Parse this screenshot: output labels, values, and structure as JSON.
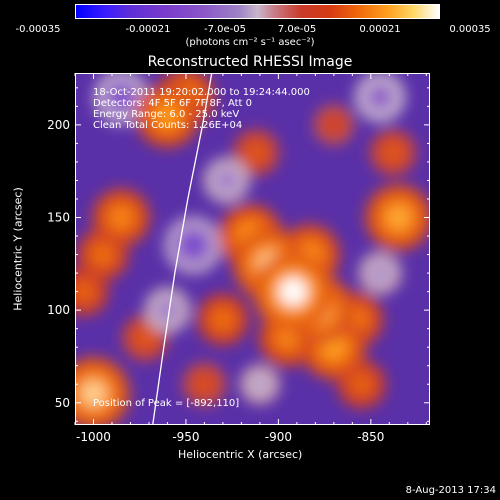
{
  "colorbar": {
    "ticks": [
      "-0.00035",
      "-0.00021",
      "-7.0e-05",
      "7.0e-05",
      "0.00021",
      "0.00035"
    ],
    "units": "(photons cm⁻² s⁻¹ asec⁻²)",
    "colors": [
      "#0000ff",
      "#5e2fd6",
      "#8a56c8",
      "#c8b6cc",
      "#c83a2a",
      "#f06a0a",
      "#ffa020",
      "#ffffff"
    ]
  },
  "chart_data": {
    "type": "heatmap",
    "title": "Reconstructed RHESSI Image",
    "xlabel": "Heliocentric X (arcsec)",
    "ylabel": "Heliocentric Y (arcsec)",
    "xlim": [
      -1010,
      -818
    ],
    "ylim": [
      38,
      228
    ],
    "xticks": [
      -1000,
      -950,
      -900,
      -850
    ],
    "yticks": [
      50,
      100,
      150,
      200
    ],
    "value_range": [
      -0.00035,
      0.00035
    ],
    "annotations": [
      "18-Oct-2011 19:20:02.000 to 19:24:44.000",
      "Detectors: 4F 5F 6F 7F 8F, Att 0",
      "Energy Range: 6.0 - 25.0 keV",
      "Clean    Total Counts: 1.26E+04"
    ],
    "peak_label": "Position of Peak = [-892,110]",
    "peak": [
      -892,
      110
    ],
    "limb_curve": [
      [
        -968,
        38
      ],
      [
        -962,
        80
      ],
      [
        -956,
        120
      ],
      [
        -949,
        160
      ],
      [
        -941,
        200
      ],
      [
        -936,
        228
      ]
    ],
    "blobs": [
      {
        "x": -892,
        "y": 110,
        "v": 0.00035
      },
      {
        "x": -905,
        "y": 125,
        "v": 0.0003
      },
      {
        "x": -878,
        "y": 100,
        "v": 0.00028
      },
      {
        "x": -915,
        "y": 140,
        "v": 0.00024
      },
      {
        "x": -870,
        "y": 80,
        "v": 0.00025
      },
      {
        "x": -883,
        "y": 130,
        "v": 0.00022
      },
      {
        "x": -858,
        "y": 95,
        "v": 0.00018
      },
      {
        "x": -895,
        "y": 85,
        "v": 0.0002
      },
      {
        "x": -835,
        "y": 150,
        "v": 0.00026
      },
      {
        "x": -838,
        "y": 185,
        "v": 0.00012
      },
      {
        "x": -960,
        "y": 205,
        "v": 0.00024
      },
      {
        "x": -950,
        "y": 215,
        "v": 0.0002
      },
      {
        "x": -985,
        "y": 150,
        "v": 0.0002
      },
      {
        "x": -995,
        "y": 130,
        "v": 0.00016
      },
      {
        "x": -1000,
        "y": 55,
        "v": 0.0003
      },
      {
        "x": -972,
        "y": 85,
        "v": 0.00012
      },
      {
        "x": -1005,
        "y": 110,
        "v": 0.00014
      },
      {
        "x": -930,
        "y": 95,
        "v": 0.00016
      },
      {
        "x": -940,
        "y": 60,
        "v": 0.0001
      },
      {
        "x": -855,
        "y": 60,
        "v": 0.00014
      },
      {
        "x": -912,
        "y": 185,
        "v": 0.00012
      },
      {
        "x": -870,
        "y": 200,
        "v": 8e-05
      },
      {
        "x": -845,
        "y": 215,
        "v": -0.00015
      },
      {
        "x": -946,
        "y": 135,
        "v": -0.0002
      },
      {
        "x": -985,
        "y": 215,
        "v": -0.00018
      },
      {
        "x": -928,
        "y": 170,
        "v": -0.00012
      },
      {
        "x": -960,
        "y": 100,
        "v": -0.00012
      },
      {
        "x": -845,
        "y": 120,
        "v": -0.0001
      },
      {
        "x": -910,
        "y": 60,
        "v": -8e-05
      }
    ]
  },
  "footer": "8-Aug-2013 17:34"
}
